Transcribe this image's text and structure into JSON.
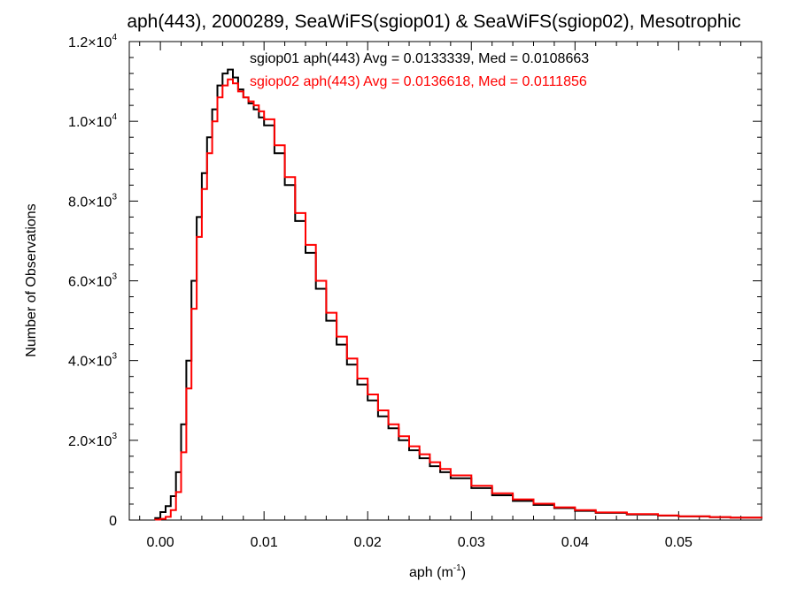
{
  "chart_data": {
    "type": "line",
    "title": "aph(443), 2000289, SeaWiFS(sgiop01) & SeaWiFS(sgiop02), Mesotrophic",
    "xlabel_main": "aph (m",
    "xlabel_sup": "-1",
    "xlabel_end": ")",
    "ylabel": "Number of Observations",
    "xlim": [
      -0.003,
      0.058
    ],
    "ylim": [
      0,
      12000
    ],
    "x_ticks": [
      {
        "value": 0.0,
        "label": "0.00"
      },
      {
        "value": 0.01,
        "label": "0.01"
      },
      {
        "value": 0.02,
        "label": "0.02"
      },
      {
        "value": 0.03,
        "label": "0.03"
      },
      {
        "value": 0.04,
        "label": "0.04"
      },
      {
        "value": 0.05,
        "label": "0.05"
      }
    ],
    "y_ticks": [
      {
        "value": 0,
        "base": "0",
        "exp": ""
      },
      {
        "value": 2000,
        "base": "2.0×10",
        "exp": "3"
      },
      {
        "value": 4000,
        "base": "4.0×10",
        "exp": "3"
      },
      {
        "value": 6000,
        "base": "6.0×10",
        "exp": "3"
      },
      {
        "value": 8000,
        "base": "8.0×10",
        "exp": "3"
      },
      {
        "value": 10000,
        "base": "1.0×10",
        "exp": "4"
      },
      {
        "value": 12000,
        "base": "1.2×10",
        "exp": "4"
      }
    ],
    "series": [
      {
        "legend": "sgiop01 aph(443) Avg = 0.0133339, Med = 0.0108663",
        "color": "#000000",
        "x": [
          -0.0005,
          0.0,
          0.0005,
          0.001,
          0.0015,
          0.002,
          0.0025,
          0.003,
          0.0035,
          0.004,
          0.0045,
          0.005,
          0.0055,
          0.006,
          0.0065,
          0.007,
          0.0075,
          0.008,
          0.0085,
          0.009,
          0.0095,
          0.01,
          0.011,
          0.012,
          0.013,
          0.014,
          0.015,
          0.016,
          0.017,
          0.018,
          0.019,
          0.02,
          0.021,
          0.022,
          0.023,
          0.024,
          0.025,
          0.026,
          0.027,
          0.028,
          0.03,
          0.032,
          0.034,
          0.036,
          0.038,
          0.04,
          0.042,
          0.045,
          0.048,
          0.05,
          0.053,
          0.055,
          0.058
        ],
        "y": [
          50,
          200,
          350,
          600,
          1200,
          2400,
          4000,
          6000,
          7600,
          8700,
          9600,
          10300,
          10900,
          11200,
          11300,
          11100,
          10800,
          10600,
          10450,
          10300,
          10100,
          9900,
          9200,
          8400,
          7500,
          6700,
          5800,
          5000,
          4400,
          3900,
          3400,
          3000,
          2600,
          2300,
          2000,
          1750,
          1550,
          1350,
          1200,
          1050,
          800,
          620,
          480,
          380,
          300,
          230,
          180,
          140,
          110,
          90,
          70,
          60,
          40
        ]
      },
      {
        "legend": "sgiop02 aph(443) Avg = 0.0136618, Med = 0.0111856",
        "color": "#ff0000",
        "x": [
          -0.0005,
          0.0,
          0.0005,
          0.001,
          0.0015,
          0.002,
          0.0025,
          0.003,
          0.0035,
          0.004,
          0.0045,
          0.005,
          0.0055,
          0.006,
          0.0065,
          0.007,
          0.0075,
          0.008,
          0.0085,
          0.009,
          0.0095,
          0.01,
          0.011,
          0.012,
          0.013,
          0.014,
          0.015,
          0.016,
          0.017,
          0.018,
          0.019,
          0.02,
          0.021,
          0.022,
          0.023,
          0.024,
          0.025,
          0.026,
          0.027,
          0.028,
          0.03,
          0.032,
          0.034,
          0.036,
          0.038,
          0.04,
          0.042,
          0.045,
          0.048,
          0.05,
          0.053,
          0.055,
          0.058
        ],
        "y": [
          10,
          30,
          80,
          250,
          700,
          1700,
          3300,
          5300,
          7100,
          8300,
          9200,
          10000,
          10600,
          10900,
          11050,
          10950,
          10750,
          10600,
          10500,
          10400,
          10250,
          10050,
          9400,
          8600,
          7700,
          6900,
          6000,
          5200,
          4600,
          4050,
          3550,
          3150,
          2750,
          2400,
          2100,
          1850,
          1650,
          1450,
          1280,
          1120,
          860,
          670,
          520,
          410,
          320,
          250,
          190,
          150,
          115,
          95,
          75,
          62,
          42
        ]
      }
    ]
  }
}
